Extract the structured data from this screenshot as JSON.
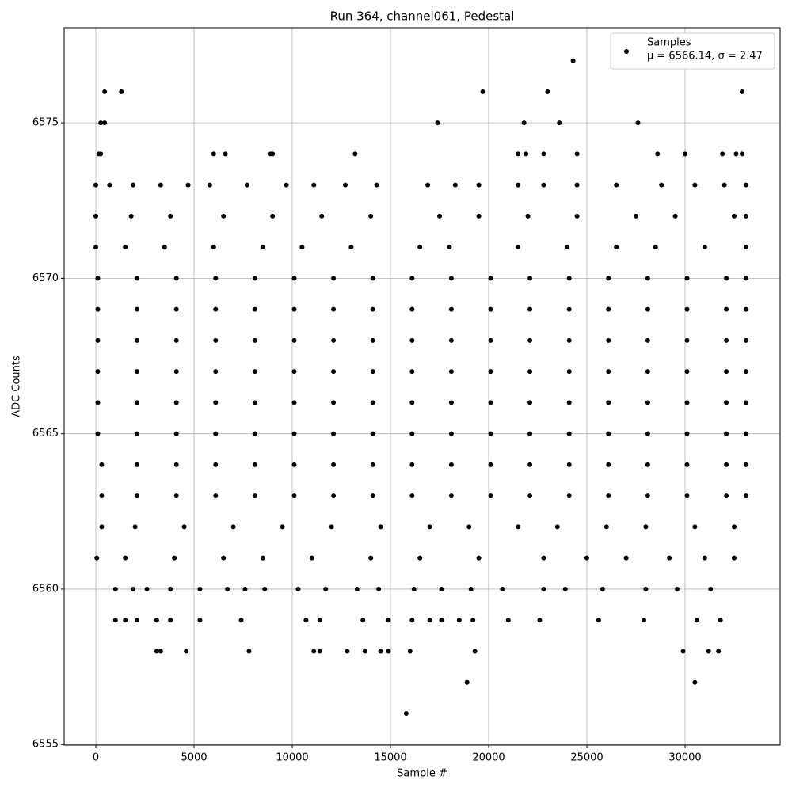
{
  "chart_data": {
    "type": "scatter",
    "title": "Run 364, channel061, Pedestal",
    "x_label": "Sample #",
    "y_label": "ADC Counts",
    "xlim": [
      -1613,
      34839
    ],
    "ylim": [
      6554.98,
      6578.06
    ],
    "xticks": [
      0,
      5000,
      10000,
      15000,
      20000,
      25000,
      30000
    ],
    "yticks": [
      6555,
      6560,
      6565,
      6570,
      6575
    ],
    "grid": true,
    "legend_loc": "upper right",
    "legend_note": "μ = 6566.14, σ = 2.47",
    "series": [
      {
        "name": "Samples",
        "color": "#000000",
        "x": [
          100,
          2100,
          4100,
          6100,
          8100,
          10100,
          12100,
          14100,
          16100,
          18100,
          20100,
          22100,
          24100,
          26100,
          28100,
          30100,
          32100,
          33100,
          100,
          2100,
          4100,
          6100,
          8100,
          10100,
          12100,
          14100,
          16100,
          18100,
          20100,
          22100,
          24100,
          26100,
          28100,
          30100,
          32100,
          33100,
          100,
          2100,
          4100,
          6100,
          8100,
          10100,
          12100,
          14100,
          16100,
          18100,
          20100,
          22100,
          24100,
          26100,
          28100,
          30100,
          32100,
          33100,
          100,
          2100,
          4100,
          6100,
          8100,
          10100,
          12100,
          14100,
          16100,
          18100,
          20100,
          22100,
          24100,
          26100,
          28100,
          30100,
          32100,
          33100,
          100,
          2100,
          4100,
          6100,
          8100,
          10100,
          12100,
          14100,
          16100,
          18100,
          20100,
          22100,
          24100,
          26100,
          28100,
          30100,
          32100,
          33100,
          100,
          2100,
          4100,
          6100,
          8100,
          10100,
          12100,
          14100,
          16100,
          18100,
          20100,
          22100,
          24100,
          26100,
          28100,
          30100,
          32100,
          33100,
          300,
          2100,
          4100,
          6100,
          8100,
          10100,
          12100,
          14100,
          16100,
          18100,
          20100,
          22100,
          24100,
          26100,
          28100,
          30100,
          32100,
          33100,
          300,
          2100,
          4100,
          6100,
          8100,
          10100,
          12100,
          14100,
          16100,
          18100,
          20100,
          22100,
          24100,
          26100,
          28100,
          30100,
          32100,
          33100,
          0,
          1500,
          3500,
          6000,
          8500,
          10500,
          13000,
          16500,
          18000,
          21500,
          24000,
          26500,
          28500,
          31000,
          33100,
          0,
          1800,
          3800,
          6500,
          9000,
          11500,
          14000,
          17500,
          19500,
          22000,
          24500,
          27500,
          29500,
          32500,
          33100,
          300,
          2000,
          4500,
          7000,
          9500,
          12000,
          14500,
          17000,
          19000,
          21500,
          23500,
          26000,
          28000,
          30500,
          32500,
          50,
          1500,
          4000,
          6500,
          8500,
          11000,
          14000,
          16500,
          19500,
          22800,
          25000,
          27000,
          29200,
          31000,
          32500,
          0,
          700,
          1900,
          3300,
          4700,
          5800,
          7700,
          9700,
          11100,
          12700,
          14300,
          16900,
          18300,
          19500,
          21500,
          22800,
          24500,
          26500,
          28800,
          30500,
          32000,
          33100,
          1000,
          1900,
          2600,
          3800,
          5300,
          6700,
          7600,
          8600,
          10300,
          11700,
          13300,
          14400,
          16200,
          17600,
          19100,
          20700,
          22800,
          23900,
          25800,
          28000,
          29600,
          31300,
          1000,
          1500,
          2100,
          3100,
          3800,
          5300,
          7400,
          10700,
          11400,
          13600,
          14900,
          16100,
          17000,
          17600,
          18500,
          19200,
          21000,
          22600,
          25600,
          27900,
          30600,
          31800,
          3100,
          3300,
          4600,
          7800,
          11100,
          11400,
          12800,
          13700,
          14500,
          14900,
          16000,
          19300,
          29900,
          31200,
          31700,
          150,
          250,
          6000,
          6600,
          8900,
          9000,
          13200,
          21500,
          21900,
          22800,
          24500,
          28600,
          30000,
          31900,
          32600,
          32900,
          250,
          450,
          17400,
          21800,
          23600,
          27600,
          450,
          1300,
          19700,
          23000,
          32900,
          24300,
          18900,
          30500,
          15800
        ],
        "values": [
          6570,
          6570,
          6570,
          6570,
          6570,
          6570,
          6570,
          6570,
          6570,
          6570,
          6570,
          6570,
          6570,
          6570,
          6570,
          6570,
          6570,
          6570,
          6569,
          6569,
          6569,
          6569,
          6569,
          6569,
          6569,
          6569,
          6569,
          6569,
          6569,
          6569,
          6569,
          6569,
          6569,
          6569,
          6569,
          6569,
          6568,
          6568,
          6568,
          6568,
          6568,
          6568,
          6568,
          6568,
          6568,
          6568,
          6568,
          6568,
          6568,
          6568,
          6568,
          6568,
          6568,
          6568,
          6567,
          6567,
          6567,
          6567,
          6567,
          6567,
          6567,
          6567,
          6567,
          6567,
          6567,
          6567,
          6567,
          6567,
          6567,
          6567,
          6567,
          6567,
          6566,
          6566,
          6566,
          6566,
          6566,
          6566,
          6566,
          6566,
          6566,
          6566,
          6566,
          6566,
          6566,
          6566,
          6566,
          6566,
          6566,
          6566,
          6565,
          6565,
          6565,
          6565,
          6565,
          6565,
          6565,
          6565,
          6565,
          6565,
          6565,
          6565,
          6565,
          6565,
          6565,
          6565,
          6565,
          6565,
          6564,
          6564,
          6564,
          6564,
          6564,
          6564,
          6564,
          6564,
          6564,
          6564,
          6564,
          6564,
          6564,
          6564,
          6564,
          6564,
          6564,
          6564,
          6563,
          6563,
          6563,
          6563,
          6563,
          6563,
          6563,
          6563,
          6563,
          6563,
          6563,
          6563,
          6563,
          6563,
          6563,
          6563,
          6563,
          6563,
          6571,
          6571,
          6571,
          6571,
          6571,
          6571,
          6571,
          6571,
          6571,
          6571,
          6571,
          6571,
          6571,
          6571,
          6571,
          6572,
          6572,
          6572,
          6572,
          6572,
          6572,
          6572,
          6572,
          6572,
          6572,
          6572,
          6572,
          6572,
          6572,
          6572,
          6562,
          6562,
          6562,
          6562,
          6562,
          6562,
          6562,
          6562,
          6562,
          6562,
          6562,
          6562,
          6562,
          6562,
          6562,
          6561,
          6561,
          6561,
          6561,
          6561,
          6561,
          6561,
          6561,
          6561,
          6561,
          6561,
          6561,
          6561,
          6561,
          6561,
          6573,
          6573,
          6573,
          6573,
          6573,
          6573,
          6573,
          6573,
          6573,
          6573,
          6573,
          6573,
          6573,
          6573,
          6573,
          6573,
          6573,
          6573,
          6573,
          6573,
          6573,
          6573,
          6560,
          6560,
          6560,
          6560,
          6560,
          6560,
          6560,
          6560,
          6560,
          6560,
          6560,
          6560,
          6560,
          6560,
          6560,
          6560,
          6560,
          6560,
          6560,
          6560,
          6560,
          6560,
          6559,
          6559,
          6559,
          6559,
          6559,
          6559,
          6559,
          6559,
          6559,
          6559,
          6559,
          6559,
          6559,
          6559,
          6559,
          6559,
          6559,
          6559,
          6559,
          6559,
          6559,
          6559,
          6558,
          6558,
          6558,
          6558,
          6558,
          6558,
          6558,
          6558,
          6558,
          6558,
          6558,
          6558,
          6558,
          6558,
          6558,
          6574,
          6574,
          6574,
          6574,
          6574,
          6574,
          6574,
          6574,
          6574,
          6574,
          6574,
          6574,
          6574,
          6574,
          6574,
          6574,
          6575,
          6575,
          6575,
          6575,
          6575,
          6575,
          6576,
          6576,
          6576,
          6576,
          6576,
          6577,
          6557,
          6557,
          6556
        ]
      }
    ]
  }
}
